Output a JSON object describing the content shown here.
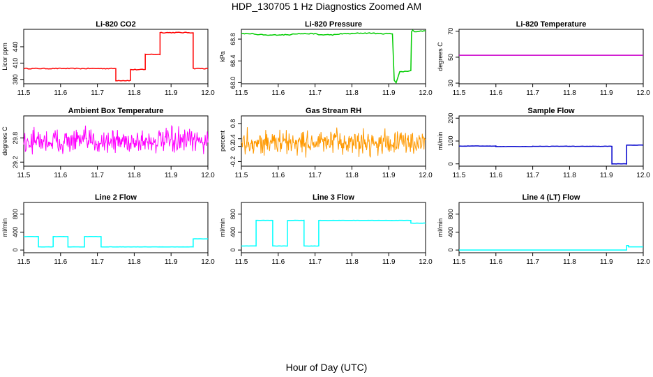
{
  "page": {
    "title": "HDP_130705  1 Hz Diagnostics Zoomed AM",
    "xlabel": "Hour of Day (UTC)"
  },
  "chart_data": [
    {
      "type": "line",
      "title": "Li-820 CO2",
      "ylabel": "Licor ppm",
      "xlim": [
        11.5,
        12.0
      ],
      "ylim": [
        372,
        472
      ],
      "xticks": [
        "11.5",
        "11.6",
        "11.7",
        "11.8",
        "11.9",
        "12.0"
      ],
      "yticks": [
        380,
        410,
        440
      ],
      "ytick_labels": [
        "380",
        "410",
        "440"
      ],
      "color": "#ff0000",
      "style": "step",
      "noise": 0.8,
      "x": [
        11.5,
        11.75,
        11.75,
        11.79,
        11.79,
        11.83,
        11.83,
        11.87,
        11.87,
        11.96,
        11.96,
        12.0
      ],
      "y": [
        400,
        400,
        378,
        378,
        398,
        398,
        426,
        426,
        466,
        466,
        400,
        400
      ]
    },
    {
      "type": "line",
      "title": "Li-820 Pressure",
      "ylabel": "kPa",
      "xlim": [
        11.5,
        12.0
      ],
      "ylim": [
        67.98,
        68.98
      ],
      "xticks": [
        "11.5",
        "11.6",
        "11.7",
        "11.8",
        "11.9",
        "12.0"
      ],
      "yticks": [
        68.0,
        68.4,
        68.8
      ],
      "ytick_labels": [
        "68.0",
        "68.4",
        "68.8"
      ],
      "color": "#00cc00",
      "style": "line",
      "noise": 0.008,
      "x": [
        11.5,
        11.53,
        11.54,
        11.56,
        11.57,
        11.6,
        11.63,
        11.64,
        11.7,
        11.71,
        11.76,
        11.77,
        11.8,
        11.82,
        11.86,
        11.87,
        11.91,
        11.915,
        11.92,
        11.93,
        11.935,
        11.96,
        11.962,
        11.965,
        11.97,
        12.0
      ],
      "y": [
        68.9,
        68.9,
        68.88,
        68.88,
        68.87,
        68.88,
        68.88,
        68.9,
        68.9,
        68.88,
        68.88,
        68.9,
        68.9,
        68.91,
        68.91,
        68.9,
        68.9,
        68.05,
        68.0,
        68.2,
        68.2,
        68.22,
        68.94,
        68.96,
        68.94,
        68.95
      ]
    },
    {
      "type": "line",
      "title": "Li-820 Temperature",
      "ylabel": "degrees C",
      "xlim": [
        11.5,
        12.0
      ],
      "ylim": [
        29.5,
        71.5
      ],
      "xticks": [
        "11.5",
        "11.6",
        "11.7",
        "11.8",
        "11.9",
        "12.0"
      ],
      "yticks": [
        30,
        50,
        70
      ],
      "ytick_labels": [
        "30",
        "50",
        "70"
      ],
      "color": "#cc00cc",
      "style": "line",
      "noise": 0,
      "x": [
        11.5,
        12.0
      ],
      "y": [
        51.5,
        51.5
      ]
    },
    {
      "type": "line",
      "title": "Ambient Box Temperature",
      "ylabel": "degrees C",
      "xlim": [
        11.5,
        12.0
      ],
      "ylim": [
        29.1,
        30.35
      ],
      "xticks": [
        "11.5",
        "11.6",
        "11.7",
        "11.8",
        "11.9",
        "12.0"
      ],
      "yticks": [
        29.2,
        29.8
      ],
      "ytick_labels": [
        "29.2",
        "29.8"
      ],
      "color": "#ff00ff",
      "style": "noise",
      "noise": 0.28,
      "x": [
        11.5,
        12.0
      ],
      "y": [
        29.72,
        29.72
      ]
    },
    {
      "type": "line",
      "title": "Gas Stream RH",
      "ylabel": "percent",
      "xlim": [
        11.5,
        12.0
      ],
      "ylim": [
        -0.32,
        1.0
      ],
      "xticks": [
        "11.5",
        "11.6",
        "11.7",
        "11.8",
        "11.9",
        "12.0"
      ],
      "yticks": [
        -0.2,
        0.2,
        0.4,
        0.8
      ],
      "ytick_labels": [
        "-0.2",
        "0.2",
        "0.4",
        "0.8"
      ],
      "color": "#ff9900",
      "style": "noise",
      "noise": 0.3,
      "x": [
        11.5,
        12.0
      ],
      "y": [
        0.3,
        0.3
      ]
    },
    {
      "type": "line",
      "title": "Sample Flow",
      "ylabel": "ml/min",
      "xlim": [
        11.5,
        12.0
      ],
      "ylim": [
        -10,
        210
      ],
      "xticks": [
        "11.5",
        "11.6",
        "11.7",
        "11.8",
        "11.9",
        "12.0"
      ],
      "yticks": [
        0,
        100,
        200
      ],
      "ytick_labels": [
        "0",
        "100",
        "200"
      ],
      "color": "#0000cc",
      "style": "step",
      "noise": 0.6,
      "x": [
        11.5,
        11.6,
        11.6,
        11.7,
        11.7,
        11.915,
        11.915,
        11.955,
        11.955,
        12.0
      ],
      "y": [
        78,
        78,
        76,
        76,
        77,
        77,
        0,
        0,
        82,
        82
      ]
    },
    {
      "type": "line",
      "title": "Line 2 Flow",
      "ylabel": "ml/min",
      "xlim": [
        11.5,
        12.0
      ],
      "ylim": [
        -60,
        1060
      ],
      "xticks": [
        "11.5",
        "11.6",
        "11.7",
        "11.8",
        "11.9",
        "12.0"
      ],
      "yticks": [
        0,
        400,
        800
      ],
      "ytick_labels": [
        "0",
        "400",
        "800"
      ],
      "color": "#00ffff",
      "style": "step",
      "noise": 2,
      "x": [
        11.5,
        11.54,
        11.54,
        11.58,
        11.58,
        11.62,
        11.62,
        11.665,
        11.665,
        11.71,
        11.71,
        11.96,
        11.96,
        12.0
      ],
      "y": [
        300,
        300,
        70,
        70,
        300,
        300,
        70,
        70,
        300,
        300,
        70,
        70,
        250,
        250
      ]
    },
    {
      "type": "line",
      "title": "Line 3 Flow",
      "ylabel": "ml/min",
      "xlim": [
        11.5,
        12.0
      ],
      "ylim": [
        -60,
        1060
      ],
      "xticks": [
        "11.5",
        "11.6",
        "11.7",
        "11.8",
        "11.9",
        "12.0"
      ],
      "yticks": [
        0,
        400,
        800
      ],
      "ytick_labels": [
        "0",
        "400",
        "800"
      ],
      "color": "#00ffff",
      "style": "step",
      "noise": 3,
      "x": [
        11.5,
        11.54,
        11.54,
        11.585,
        11.585,
        11.625,
        11.625,
        11.67,
        11.67,
        11.71,
        11.71,
        11.96,
        11.96,
        12.0
      ],
      "y": [
        90,
        90,
        660,
        660,
        90,
        90,
        660,
        660,
        90,
        90,
        660,
        660,
        600,
        600
      ]
    },
    {
      "type": "line",
      "title": "Line 4 (LT) Flow",
      "ylabel": "ml/min",
      "xlim": [
        11.5,
        12.0
      ],
      "ylim": [
        -60,
        1060
      ],
      "xticks": [
        "11.5",
        "11.6",
        "11.7",
        "11.8",
        "11.9",
        "12.0"
      ],
      "yticks": [
        0,
        400,
        800
      ],
      "ytick_labels": [
        "0",
        "400",
        "800"
      ],
      "color": "#00ffff",
      "style": "step",
      "noise": 0,
      "x": [
        11.5,
        11.955,
        11.955,
        11.96,
        11.96,
        12.0
      ],
      "y": [
        0,
        0,
        100,
        100,
        70,
        70
      ]
    }
  ]
}
